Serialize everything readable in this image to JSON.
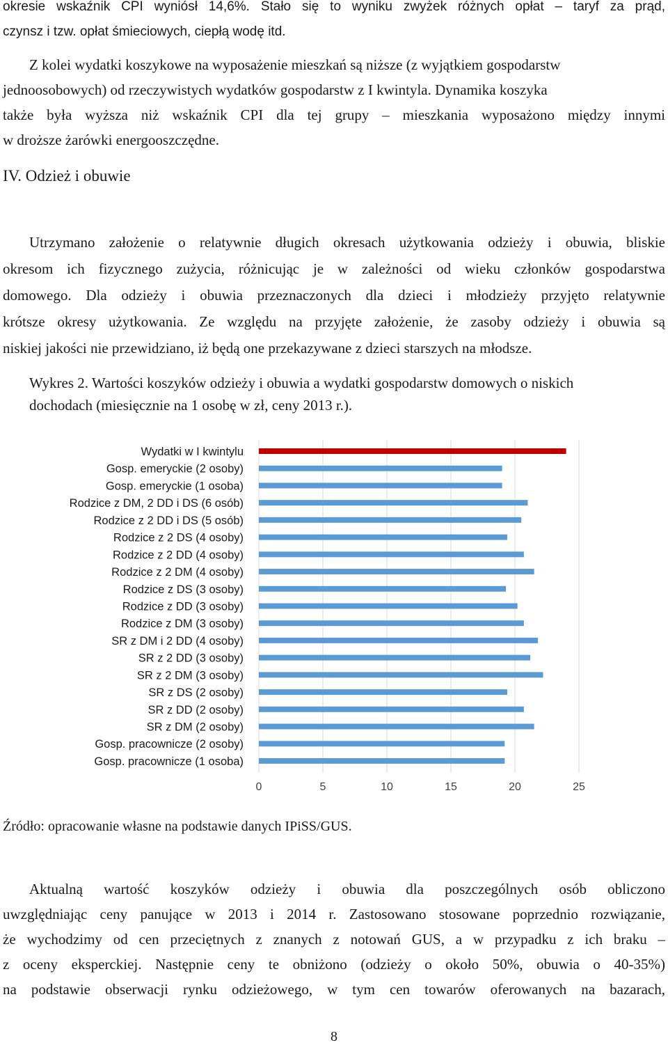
{
  "para1": {
    "lines": [
      "okresie wskaźnik CPI wyniósł 14,6%. Stało się to wyniku zwyżek różnych opłat – taryf za prąd,",
      "czynsz i tzw. opłat śmieciowych, ciepłą wodę itd."
    ]
  },
  "para2": {
    "lines": [
      "Z kolei wydatki koszykowe na wyposażenie mieszkań są niższe (z wyjątkiem gospodarstw",
      "jednoosobowych) od rzeczywistych wydatków gospodarstw z I kwintyla. Dynamika koszyka",
      "także była wyższa niż wskaźnik CPI dla tej grupy – mieszkania wyposażono między innymi",
      "w droższe żarówki energooszczędne."
    ]
  },
  "heading": "IV. Odzież i obuwie",
  "para3": {
    "lines": [
      "Utrzymano założenie o relatywnie długich okresach użytkowania odzieży i obuwia, bliskie",
      "okresom ich fizycznego zużycia, różnicując je w zależności od wieku członków gospodarstwa",
      "domowego. Dla odzieży i obuwia przeznaczonych dla dzieci i młodzieży przyjęto relatywnie",
      "krótsze okresy użytkowania. Ze względu na przyjęte założenie, że zasoby odzieży i obuwia są",
      "niskiej jakości nie przewidziano, iż będą one przekazywane z dzieci starszych na młodsze."
    ]
  },
  "caption": {
    "line1": "Wykres 2. Wartości koszyków odzieży i obuwia a wydatki gospodarstw domowych o niskich",
    "line2": "dochodach (miesięcznie na 1 osobę w zł, ceny 2013 r.)."
  },
  "chart_data": {
    "type": "bar",
    "orientation": "horizontal",
    "categories": [
      "Wydatki w I kwintylu",
      "Gosp. emeryckie (2 osoby)",
      "Gosp. emeryckie (1 osoba)",
      "Rodzice z DM, 2 DD i DS (6 osób)",
      "Rodzice z 2 DD i DS (5 osób)",
      "Rodzice z 2 DS (4 osoby)",
      "Rodzice z 2 DD (4 osoby)",
      "Rodzice z 2 DM (4 osoby)",
      "Rodzice z DS (3 osoby)",
      "Rodzice z DD (3 osoby)",
      "Rodzice z DM (3 osoby)",
      "SR z DM i 2 DD (4 osoby)",
      "SR z 2 DD (3 osoby)",
      "SR z 2 DM (3 osoby)",
      "SR z DS (2 osoby)",
      "SR z DD (2 osoby)",
      "SR z DM (2 osoby)",
      "Gosp. pracownicze (2 osoby)",
      "Gosp. pracownicze (1 osoba)"
    ],
    "values": [
      24.0,
      19.0,
      19.0,
      21.0,
      20.5,
      19.4,
      20.7,
      21.5,
      19.3,
      20.2,
      20.7,
      21.8,
      21.2,
      22.2,
      19.4,
      20.7,
      21.5,
      19.2,
      19.2
    ],
    "highlight_index": 0,
    "highlight_color": "#c00000",
    "bar_color": "#5b9bd5",
    "xlim": [
      0,
      25
    ],
    "xticks": [
      "0",
      "5",
      "10",
      "15",
      "20",
      "25"
    ],
    "grid": "vertical",
    "legend": "none"
  },
  "source": "Źródło: opracowanie własne na podstawie danych IPiSS/GUS.",
  "para4": {
    "lines": [
      "Aktualną wartość koszyków odzieży i obuwia dla poszczególnych osób obliczono",
      "uwzględniając ceny panujące w 2013 i 2014 r. Zastosowano stosowane poprzednio rozwiązanie,",
      "że wychodzimy od cen przeciętnych z znanych z notowań GUS, a w przypadku z ich braku –",
      "z oceny eksperckiej. Następnie ceny te obniżono (odzieży o około 50%, obuwia o 40-35%)",
      "na podstawie obserwacji rynku odzieżowego, w tym cen towarów oferowanych na bazarach,"
    ]
  },
  "page_number": "8"
}
